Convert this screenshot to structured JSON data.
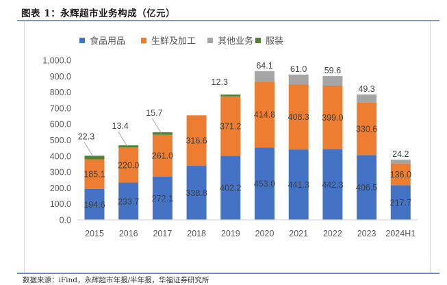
{
  "figure": {
    "title": "图表 1：永辉超市业务构成（亿元）",
    "source": "数据来源：iFind，永辉超市年报/半年报，华福证券研究所"
  },
  "chart_data": {
    "type": "bar",
    "stacked": true,
    "title": "永辉超市业务构成（亿元）",
    "xlabel": "",
    "ylabel": "",
    "ylim": [
      0,
      1000
    ],
    "yticks": [
      0,
      100,
      200,
      300,
      400,
      500,
      600,
      700,
      800,
      900,
      1000
    ],
    "ytick_labels": [
      "0.0",
      "100.0",
      "200.0",
      "300.0",
      "400.0",
      "500.0",
      "600.0",
      "700.0",
      "800.0",
      "900.0",
      "1,000.0"
    ],
    "grid": false,
    "legend_position": "top-center",
    "categories": [
      "2015",
      "2016",
      "2017",
      "2018",
      "2019",
      "2020",
      "2021",
      "2022",
      "2023",
      "2024H1"
    ],
    "series": [
      {
        "name": "食品用品",
        "color": "#4472c4",
        "values": [
          194.6,
          233.7,
          272.1,
          338.8,
          402.2,
          453.0,
          441.3,
          442.3,
          406.5,
          217.7
        ],
        "labels": [
          "194.6",
          "233.7",
          "272.1",
          "338.8",
          "402.2",
          "453.0",
          "441.3",
          "442.3",
          "406.5",
          "217.7"
        ]
      },
      {
        "name": "生鲜及加工",
        "color": "#ed7d31",
        "values": [
          185.1,
          220.0,
          261.0,
          316.6,
          371.2,
          414.8,
          408.3,
          399.0,
          330.6,
          136.0
        ],
        "labels": [
          "185.1",
          "220.0",
          "261.0",
          "316.6",
          "371.2",
          "414.8",
          "408.3",
          "399.0",
          "330.6",
          "136.0"
        ]
      },
      {
        "name": "其他业务",
        "color": "#a5a5a5",
        "values": [
          0,
          0,
          0,
          0,
          0,
          64.1,
          61.0,
          59.6,
          49.3,
          24.2
        ],
        "labels": [
          "",
          "",
          "",
          "",
          "",
          "64.1",
          "61.0",
          "59.6",
          "49.3",
          "24.2"
        ]
      },
      {
        "name": "服装",
        "color": "#548235",
        "values": [
          22.3,
          13.4,
          15.7,
          0,
          12.3,
          0,
          0,
          0,
          0,
          0
        ],
        "labels": [
          "22.3",
          "13.4",
          "15.7",
          "",
          "12.3",
          "",
          "",
          "",
          "",
          ""
        ]
      }
    ]
  }
}
